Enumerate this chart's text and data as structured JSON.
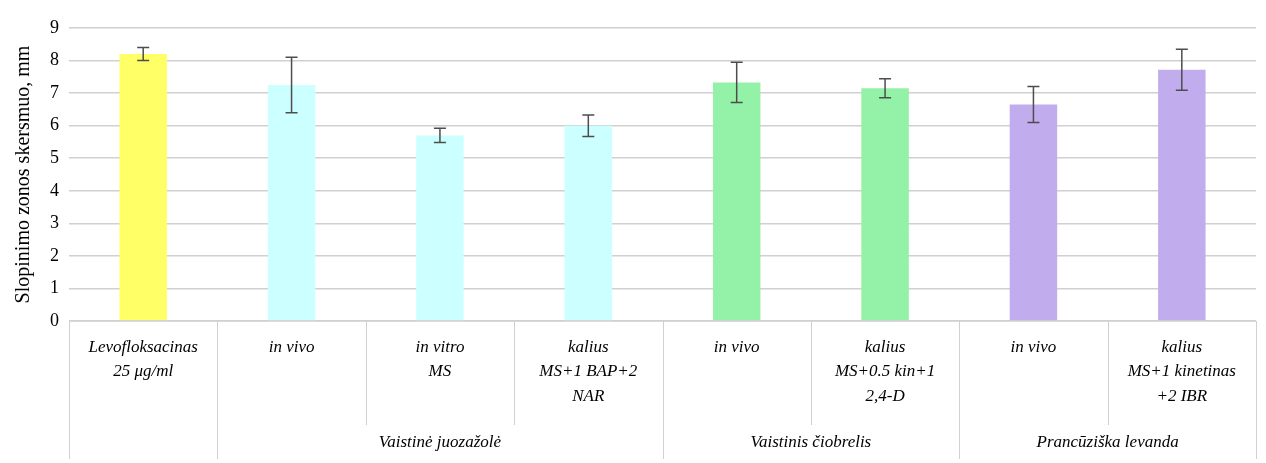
{
  "chart_data": {
    "type": "bar",
    "ylabel": "Slopinimo zonos skersmuo, mm",
    "categories": [
      "Levofloksacinas\n25 μg/ml",
      "in vivo",
      "in vitro\nMS",
      "kalius\nMS+1 BAP+2\nNAR",
      "in vivo",
      "kalius\nMS+0.5 kin+1\n2,4-D",
      "in vivo",
      "kalius\nMS+1 kinetinas\n+2 IBR"
    ],
    "series": [
      {
        "color": "#ffff66",
        "values": [
          8.2,
          null,
          null,
          null,
          null,
          null,
          null,
          null
        ],
        "errors": [
          0.2,
          null,
          null,
          null,
          null,
          null,
          null,
          null
        ]
      },
      {
        "color": "#ccffff",
        "values": [
          null,
          7.25,
          5.7,
          6.0,
          null,
          null,
          null,
          null
        ],
        "errors": [
          null,
          0.85,
          0.22,
          0.33,
          null,
          null,
          null,
          null
        ]
      },
      {
        "color": "#93f2a7",
        "values": [
          null,
          null,
          null,
          null,
          7.33,
          7.15,
          null,
          null
        ],
        "errors": [
          null,
          null,
          null,
          null,
          0.62,
          0.29,
          null,
          null
        ]
      },
      {
        "color": "#c1adee",
        "values": [
          null,
          null,
          null,
          null,
          null,
          null,
          6.65,
          7.72
        ],
        "errors": [
          null,
          null,
          null,
          null,
          null,
          null,
          0.55,
          0.63
        ]
      }
    ],
    "annotations": [
      "Vaistinė juozažolė",
      "Vaistinis čiobrelis",
      "Prancūziška levanda"
    ],
    "ylim": [
      0,
      9
    ],
    "yticks": [
      0,
      1,
      2,
      3,
      4,
      5,
      6,
      7,
      8,
      9
    ],
    "grid": "y"
  }
}
